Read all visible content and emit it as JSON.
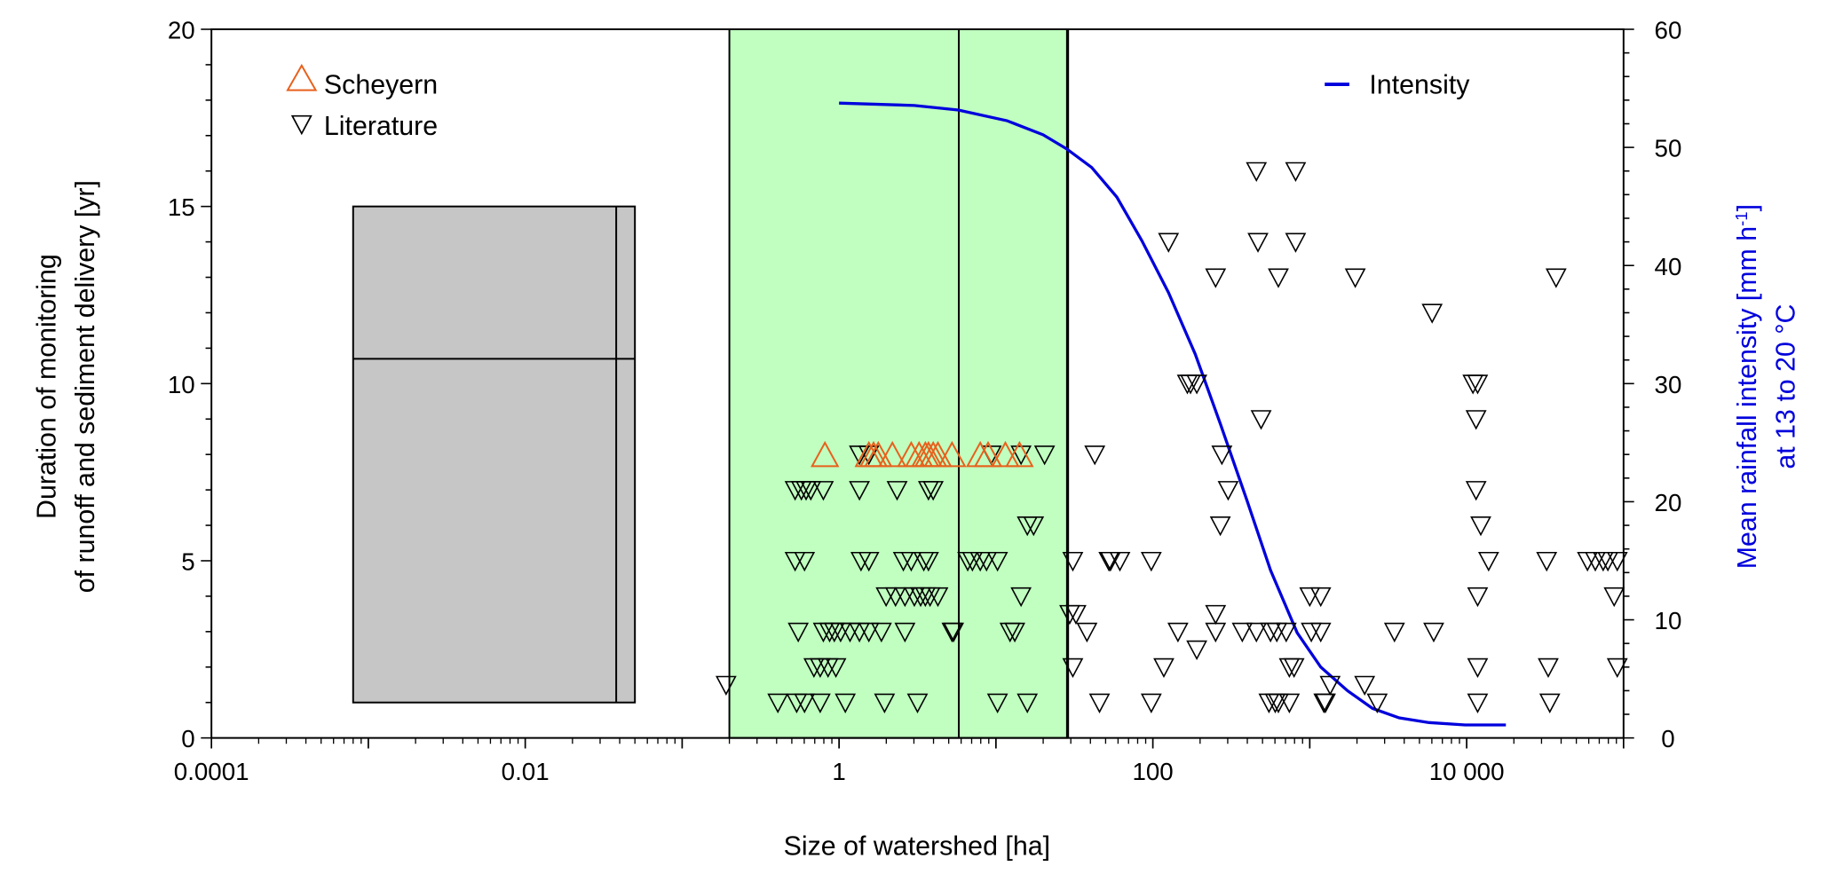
{
  "chart_data": {
    "type": "scatter",
    "xlabel": "Size of watershed [ha]",
    "ylabel_lines": [
      "Duration of monitoring",
      "of runoff and sediment delivery [yr]"
    ],
    "y2label_line1": "Mean rainfall intensity [mm h",
    "y2label_sup": "-1",
    "y2label_line1_end": "]",
    "y2label_line2": "at 13 to 20 °C",
    "x_scale": "log10",
    "xlim": [
      0.0001,
      100000
    ],
    "ylim": [
      0,
      20
    ],
    "y2lim": [
      0,
      60
    ],
    "x_ticks": [
      {
        "v": 0.0001,
        "label": "0.0001"
      },
      {
        "v": 0.01,
        "label": "0.01"
      },
      {
        "v": 1,
        "label": "1"
      },
      {
        "v": 100,
        "label": "100"
      },
      {
        "v": 10000,
        "label": "10 000"
      }
    ],
    "y_ticks": [
      "0",
      "5",
      "10",
      "15",
      "20"
    ],
    "y2_ticks": [
      "0",
      "10",
      "20",
      "30",
      "40",
      "50",
      "60"
    ],
    "colors": {
      "scheyern": "#e8601c",
      "literature": "#000000",
      "intensity": "#0000dd",
      "green_band": "#c0ffc0",
      "grey_box": "#c6c6c6"
    },
    "legend_left": [
      {
        "name": "Scheyern",
        "marker": "triangle-up"
      },
      {
        "name": "Literature",
        "marker": "triangle-down"
      }
    ],
    "legend_right": {
      "name": "Intensity",
      "marker": "line"
    },
    "grey_box": {
      "x": [
        0.0008,
        0.05
      ],
      "y": [
        1,
        15
      ],
      "median_y": 10.7,
      "inner_x": 0.038
    },
    "green_band": {
      "x": [
        0.2,
        28.6
      ],
      "divider_x": 5.8
    },
    "series": [
      {
        "name": "Scheyern",
        "y": 8,
        "x_log10": [
          -0.09,
          0.19,
          0.22,
          0.25,
          0.34,
          0.46,
          0.51,
          0.55,
          0.57,
          0.6,
          0.63,
          0.72,
          0.9,
          0.95,
          1.06,
          1.15
        ]
      },
      {
        "name": "Literature",
        "points_by_y": [
          {
            "y": 1,
            "x_log10": [
              -0.39,
              -0.27,
              -0.22,
              -0.12,
              0.04,
              0.29,
              0.5,
              1.01,
              1.2,
              1.66,
              1.99,
              2.74,
              2.78,
              2.8,
              2.87,
              3.09,
              3.1,
              3.43,
              4.07,
              4.53
            ]
          },
          {
            "y": 1.5,
            "x_log10": [
              -0.72,
              3.13,
              3.35
            ]
          },
          {
            "y": 2,
            "x_log10": [
              -0.16,
              -0.12,
              -0.07,
              -0.02,
              1.49,
              2.07,
              2.87,
              2.9,
              4.07,
              4.52,
              4.96
            ]
          },
          {
            "y": 2.5,
            "x_log10": [
              2.28
            ]
          },
          {
            "y": 3,
            "x_log10": [
              -0.26,
              -0.1,
              -0.06,
              -0.03,
              0.01,
              0.07,
              0.13,
              0.19,
              0.27,
              0.42,
              0.72,
              0.73,
              1.09,
              1.12,
              1.58,
              2.16,
              2.4,
              2.57,
              2.66,
              2.75,
              2.79,
              2.85,
              3.01,
              3.07,
              3.54,
              3.79
            ]
          },
          {
            "y": 3.5,
            "x_log10": [
              1.47,
              1.51,
              2.4
            ]
          },
          {
            "y": 4,
            "x_log10": [
              0.3,
              0.36,
              0.42,
              0.48,
              0.52,
              0.55,
              0.58,
              0.63,
              1.16,
              3.0,
              3.07,
              4.07,
              4.94
            ]
          },
          {
            "y": 5,
            "x_log10": [
              -0.28,
              -0.22,
              0.14,
              0.19,
              0.41,
              0.46,
              0.54,
              0.57,
              0.82,
              0.85,
              0.9,
              0.94,
              1.01,
              1.49,
              1.72,
              1.73,
              1.79,
              1.99,
              4.14,
              4.51,
              4.77,
              4.82,
              4.87,
              4.9,
              4.96
            ]
          },
          {
            "y": 6,
            "x_log10": [
              1.2,
              1.24,
              2.43,
              4.09
            ]
          },
          {
            "y": 7,
            "x_log10": [
              -0.28,
              -0.24,
              -0.21,
              -0.18,
              -0.1,
              0.13,
              0.37,
              0.57,
              0.6,
              2.48,
              4.06
            ]
          },
          {
            "y": 8,
            "x_log10": [
              0.13,
              0.19,
              0.97,
              1.16,
              1.31,
              1.63,
              2.44
            ]
          },
          {
            "y": 9,
            "x_log10": [
              2.69,
              4.06
            ]
          },
          {
            "y": 10,
            "x_log10": [
              2.22,
              2.24,
              2.28,
              4.04,
              4.07
            ]
          },
          {
            "y": 12,
            "x_log10": [
              3.78
            ]
          },
          {
            "y": 13,
            "x_log10": [
              2.4,
              2.8,
              3.29,
              4.57
            ]
          },
          {
            "y": 14,
            "x_log10": [
              2.1,
              2.67,
              2.91
            ]
          },
          {
            "y": 16,
            "x_log10": [
              2.66,
              2.91
            ]
          }
        ]
      },
      {
        "name": "Intensity",
        "axis": "right",
        "x_log10": [
          0,
          0.48,
          0.76,
          1.07,
          1.3,
          1.45,
          1.61,
          1.77,
          1.93,
          2.1,
          2.27,
          2.43,
          2.6,
          2.75,
          2.92,
          3.07,
          3.24,
          3.4,
          3.57,
          3.76,
          3.99,
          4.25
        ],
        "values": [
          53.75,
          53.55,
          53.16,
          52.26,
          51.07,
          49.88,
          48.3,
          45.8,
          42.1,
          37.7,
          32.5,
          26.6,
          20.1,
          14.2,
          8.9,
          6.0,
          4.0,
          2.5,
          1.7,
          1.3,
          1.1,
          1.1
        ]
      }
    ]
  }
}
